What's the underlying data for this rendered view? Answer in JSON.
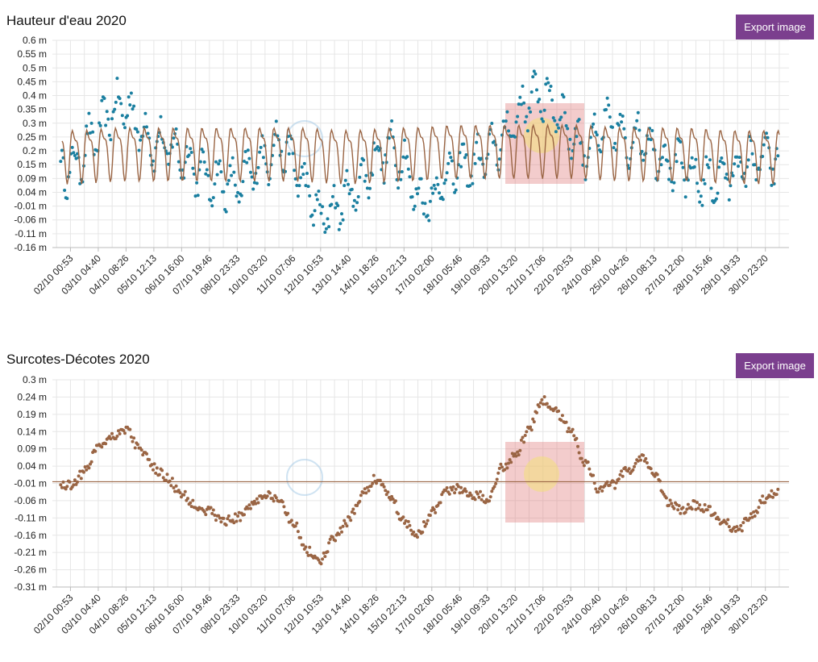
{
  "chart_data": [
    {
      "type": "scatter+line",
      "title": "Hauteur d'eau 2020",
      "export_label": "Export image",
      "yticks": [
        "0.6 m",
        "0.55 m",
        "0.5 m",
        "0.45 m",
        "0.4 m",
        "0.35 m",
        "0.3 m",
        "0.25 m",
        "0.2 m",
        "0.15 m",
        "0.09 m",
        "0.04 m",
        "-0.01 m",
        "-0.06 m",
        "-0.11 m",
        "-0.16 m"
      ],
      "ylim": [
        -0.16,
        0.6
      ],
      "xticks": [
        "02/10 00:53",
        "03/10 04:40",
        "04/10 08:26",
        "05/10 12:13",
        "06/10 16:00",
        "07/10 19:46",
        "08/10 23:33",
        "10/10 03:20",
        "11/10 07:06",
        "12/10 10:53",
        "13/10 14:40",
        "14/10 18:26",
        "15/10 22:13",
        "17/10 02:00",
        "18/10 05:46",
        "19/10 09:33",
        "20/10 13:20",
        "21/10 17:06",
        "22/10 20:53",
        "24/10 00:40",
        "25/10 04:26",
        "26/10 08:13",
        "27/10 12:00",
        "28/10 15:46",
        "29/10 19:33",
        "30/10 23:20"
      ],
      "series": [
        {
          "kind": "observed",
          "color": "#1a7fa0",
          "anchors_x": [
            0,
            1,
            1.5,
            2,
            2.5,
            3,
            3.5,
            4,
            4.5,
            5,
            5.5,
            6,
            6.5,
            7,
            7.5,
            8,
            8.5,
            9,
            9.5,
            10,
            10.5,
            11,
            11.5,
            12,
            12.5,
            13,
            13.5,
            14,
            14.5,
            15,
            15.5,
            16,
            16.5,
            17,
            17.5,
            18,
            18.5,
            19,
            19.5,
            20,
            20.5,
            21,
            21.5,
            22,
            22.5,
            23,
            23.5,
            24,
            24.5,
            25,
            25.5
          ],
          "anchors_y": [
            0.13,
            0.26,
            0.34,
            0.36,
            0.28,
            0.22,
            0.21,
            0.18,
            0.13,
            0.09,
            0.08,
            0.06,
            0.12,
            0.17,
            0.22,
            0.15,
            0.05,
            -0.05,
            -0.02,
            0.03,
            0.08,
            0.17,
            0.2,
            0.15,
            0.02,
            0.02,
            0.1,
            0.13,
            0.14,
            0.18,
            0.23,
            0.31,
            0.38,
            0.4,
            0.35,
            0.26,
            0.2,
            0.25,
            0.29,
            0.22,
            0.26,
            0.2,
            0.15,
            0.13,
            0.09,
            0.08,
            0.1,
            0.13,
            0.15,
            0.17,
            0.15
          ]
        },
        {
          "kind": "predicted",
          "color": "#9a6544",
          "amplitude": 0.085,
          "anchors_x": [
            0,
            2,
            4,
            6,
            8,
            10,
            12,
            14,
            16,
            18,
            20,
            22,
            24,
            25.5
          ],
          "anchors_y": [
            0.19,
            0.2,
            0.2,
            0.2,
            0.2,
            0.19,
            0.2,
            0.21,
            0.21,
            0.21,
            0.2,
            0.2,
            0.19,
            0.19
          ]
        }
      ]
    },
    {
      "type": "scatter",
      "title": "Surcotes-Décotes 2020",
      "export_label": "Export image",
      "yticks": [
        "0.3 m",
        "0.24 m",
        "0.19 m",
        "0.14 m",
        "0.09 m",
        "0.04 m",
        "-0.01 m",
        "-0.06 m",
        "-0.11 m",
        "-0.16 m",
        "-0.21 m",
        "-0.26 m",
        "-0.31 m"
      ],
      "ylim": [
        -0.33,
        0.3
      ],
      "reference_line": -0.01,
      "xticks": [
        "02/10 00:53",
        "03/10 04:40",
        "04/10 08:26",
        "05/10 12:13",
        "06/10 16:00",
        "07/10 19:46",
        "08/10 23:33",
        "10/10 03:20",
        "11/10 07:06",
        "12/10 10:53",
        "13/10 14:40",
        "14/10 18:26",
        "15/10 22:13",
        "17/10 02:00",
        "18/10 05:46",
        "19/10 09:33",
        "20/10 13:20",
        "21/10 17:06",
        "22/10 20:53",
        "24/10 00:40",
        "25/10 04:26",
        "26/10 08:13",
        "27/10 12:00",
        "28/10 15:46",
        "29/10 19:33",
        "30/10 23:20"
      ],
      "series": [
        {
          "kind": "observed",
          "color": "#9a6544",
          "anchors_x": [
            0,
            0.5,
            1,
            1.5,
            2,
            2.5,
            3,
            3.5,
            4,
            4.5,
            5,
            5.5,
            6,
            6.5,
            7,
            7.5,
            8,
            8.5,
            9,
            9.5,
            10,
            10.5,
            11,
            11.5,
            12,
            12.5,
            13,
            13.5,
            14,
            14.5,
            15,
            15.5,
            16,
            16.5,
            17,
            17.5,
            18,
            18.5,
            19,
            19.5,
            20,
            20.5,
            21,
            21.5,
            22,
            22.5,
            23,
            23.5,
            24,
            24.5,
            25,
            25.5
          ],
          "anchors_y": [
            -0.02,
            0.02,
            0.1,
            0.13,
            0.15,
            0.09,
            0.03,
            0.0,
            -0.05,
            -0.08,
            -0.1,
            -0.13,
            -0.12,
            -0.08,
            -0.05,
            -0.07,
            -0.13,
            -0.22,
            -0.25,
            -0.18,
            -0.13,
            -0.05,
            0.0,
            -0.05,
            -0.13,
            -0.17,
            -0.1,
            -0.04,
            -0.03,
            -0.05,
            -0.06,
            0.03,
            0.07,
            0.15,
            0.24,
            0.2,
            0.15,
            0.05,
            -0.03,
            -0.02,
            0.02,
            0.06,
            0.02,
            -0.07,
            -0.1,
            -0.08,
            -0.1,
            -0.13,
            -0.16,
            -0.11,
            -0.06,
            -0.04
          ]
        }
      ]
    }
  ]
}
